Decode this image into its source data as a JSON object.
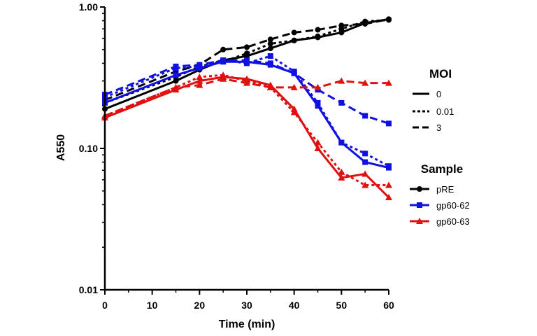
{
  "chart_data": {
    "type": "line",
    "title": "",
    "xlabel": "Time (min)",
    "ylabel": "A550",
    "xlim": [
      0,
      60
    ],
    "ylim": [
      0.01,
      1.0
    ],
    "yscale": "log",
    "x_ticks": [
      0,
      10,
      20,
      30,
      40,
      50,
      60
    ],
    "y_ticks": [
      0.01,
      0.1,
      1.0
    ],
    "y_tick_labels": [
      "0.01",
      "0.10",
      "1.00"
    ],
    "grid": false,
    "legend_position": "right",
    "legend": {
      "moi_title": "MOI",
      "moi_entries": [
        {
          "label": "0",
          "dash": "solid"
        },
        {
          "label": "0.01",
          "dash": "dotted"
        },
        {
          "label": "3",
          "dash": "dashed"
        }
      ],
      "sample_title": "Sample",
      "sample_entries": [
        {
          "label": "pRE",
          "color": "#000000",
          "marker": "circle"
        },
        {
          "label": "gp60-62",
          "color": "#1010e0",
          "marker": "square"
        },
        {
          "label": "gp60-63",
          "color": "#e01010",
          "marker": "triangle"
        }
      ]
    },
    "x": [
      0,
      15,
      20,
      25,
      30,
      35,
      40,
      45,
      50,
      55,
      60
    ],
    "series": [
      {
        "sample": "pRE",
        "moi": "0",
        "color": "#000000",
        "marker": "circle",
        "dash": "solid",
        "values": [
          0.19,
          0.3,
          0.36,
          0.42,
          0.45,
          0.51,
          0.58,
          0.61,
          0.66,
          0.77,
          0.82
        ]
      },
      {
        "sample": "pRE",
        "moi": "0.01",
        "color": "#000000",
        "marker": "circle",
        "dash": "dotted",
        "values": [
          0.21,
          0.32,
          0.38,
          0.41,
          0.47,
          0.55,
          0.58,
          0.62,
          0.7,
          0.79,
          0.81
        ]
      },
      {
        "sample": "pRE",
        "moi": "3",
        "color": "#000000",
        "marker": "circle",
        "dash": "dashed",
        "values": [
          0.22,
          0.35,
          0.39,
          0.5,
          0.52,
          0.59,
          0.66,
          0.69,
          0.74,
          0.76,
          0.82
        ]
      },
      {
        "sample": "gp60-62",
        "moi": "0",
        "color": "#1010e0",
        "marker": "square",
        "dash": "solid",
        "values": [
          0.21,
          0.33,
          0.37,
          0.41,
          0.41,
          0.39,
          0.34,
          0.2,
          0.11,
          0.08,
          0.073
        ]
      },
      {
        "sample": "gp60-62",
        "moi": "0.01",
        "color": "#1010e0",
        "marker": "square",
        "dash": "dotted",
        "values": [
          0.23,
          0.37,
          0.38,
          0.42,
          0.4,
          0.45,
          0.35,
          0.21,
          0.11,
          0.092,
          0.075
        ]
      },
      {
        "sample": "gp60-62",
        "moi": "3",
        "color": "#1010e0",
        "marker": "square",
        "dash": "dashed",
        "values": [
          0.24,
          0.38,
          0.39,
          0.42,
          0.42,
          0.4,
          0.34,
          0.26,
          0.21,
          0.17,
          0.15
        ]
      },
      {
        "sample": "gp60-63",
        "moi": "0",
        "color": "#e01010",
        "marker": "triangle",
        "dash": "solid",
        "values": [
          0.165,
          0.26,
          0.3,
          0.32,
          0.31,
          0.28,
          0.19,
          0.1,
          0.062,
          0.066,
          0.045
        ]
      },
      {
        "sample": "gp60-63",
        "moi": "0.01",
        "color": "#e01010",
        "marker": "triangle",
        "dash": "dotted",
        "values": [
          0.17,
          0.27,
          0.32,
          0.33,
          0.3,
          0.27,
          0.18,
          0.11,
          0.068,
          0.055,
          0.055
        ]
      },
      {
        "sample": "gp60-63",
        "moi": "3",
        "color": "#e01010",
        "marker": "triangle",
        "dash": "dashed",
        "values": [
          0.17,
          0.27,
          0.28,
          0.31,
          0.29,
          0.27,
          0.27,
          0.27,
          0.3,
          0.29,
          0.29
        ]
      }
    ]
  }
}
